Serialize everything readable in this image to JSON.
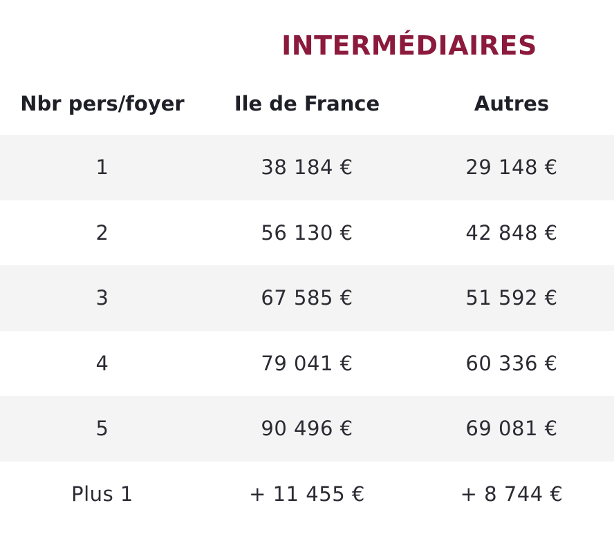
{
  "table": {
    "title": "INTERMÉDIAIRES",
    "headers": [
      "Nbr pers/foyer",
      "Ile de France",
      "Autres"
    ],
    "rows": [
      [
        "1",
        "38 184 €",
        "29 148 €"
      ],
      [
        "2",
        "56 130 €",
        "42 848 €"
      ],
      [
        "3",
        "67 585 €",
        "51 592 €"
      ],
      [
        "4",
        "79 041 €",
        "60 336 €"
      ],
      [
        "5",
        "90 496 €",
        "69 081 €"
      ],
      [
        "Plus 1",
        "+ 11 455 €",
        "+ 8 744 €"
      ]
    ]
  },
  "colors": {
    "title": "#8b1a3d",
    "row_shade": "#f4f4f4",
    "text": "#2b2b33"
  }
}
